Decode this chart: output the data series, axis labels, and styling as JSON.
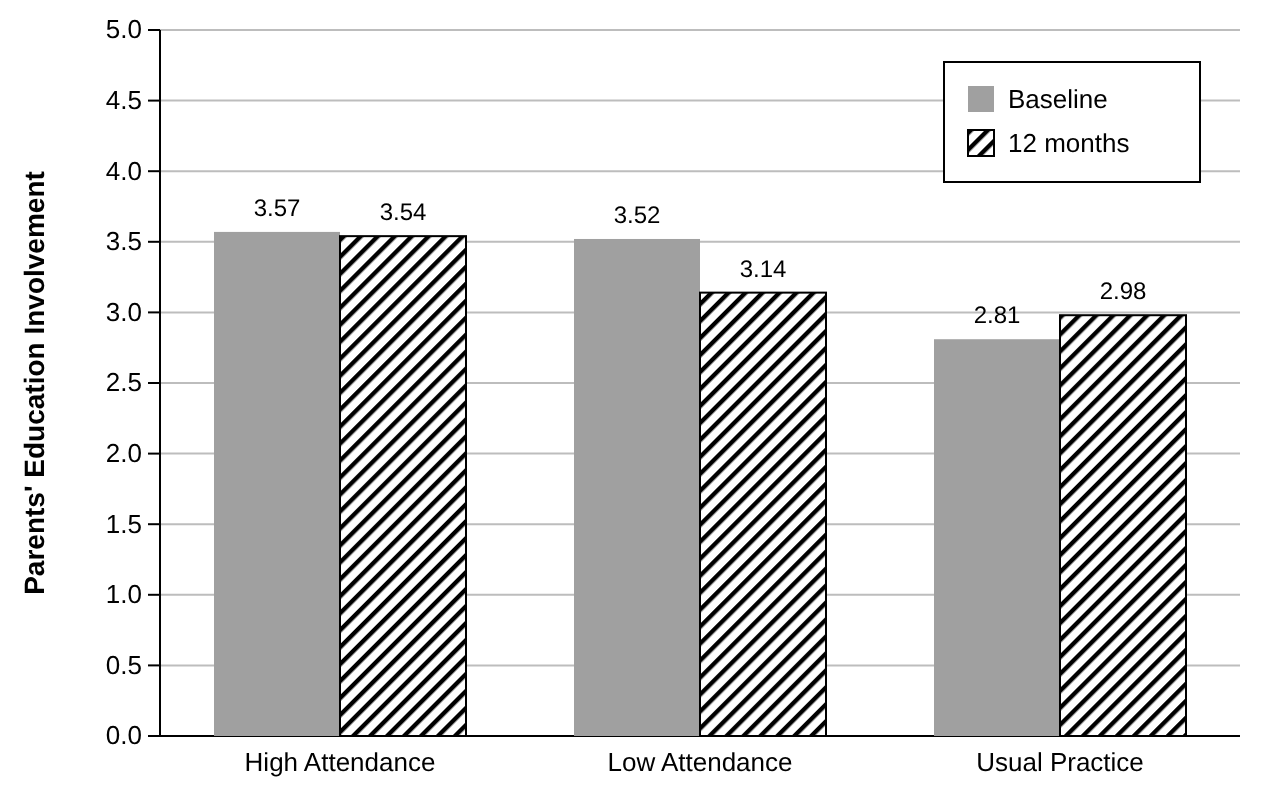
{
  "chart_data": {
    "type": "bar",
    "ylabel": "Parents' Education Involvement",
    "categories": [
      "High Attendance",
      "Low Attendance",
      "Usual Practice"
    ],
    "series": [
      {
        "name": "Baseline",
        "color": "#a0a0a0",
        "values": [
          3.57,
          3.52,
          2.81
        ]
      },
      {
        "name": "12 months",
        "color": "#000000",
        "values": [
          3.54,
          3.14,
          2.98
        ]
      }
    ],
    "ylim": [
      0,
      5
    ],
    "yticks": [
      {
        "value": 0,
        "label": "0.0"
      },
      {
        "value": 0.5,
        "label": "0.5"
      },
      {
        "value": 1,
        "label": "1.0"
      },
      {
        "value": 1.5,
        "label": "1.5"
      },
      {
        "value": 2,
        "label": "2.0"
      },
      {
        "value": 2.5,
        "label": "2.5"
      },
      {
        "value": 3,
        "label": "3.0"
      },
      {
        "value": 3.5,
        "label": "3.5"
      },
      {
        "value": 4,
        "label": "4.0"
      },
      {
        "value": 4.5,
        "label": "4.5"
      },
      {
        "value": 5,
        "label": "5.0"
      }
    ],
    "grid": "y",
    "legend": "top right",
    "data_labels": true
  }
}
